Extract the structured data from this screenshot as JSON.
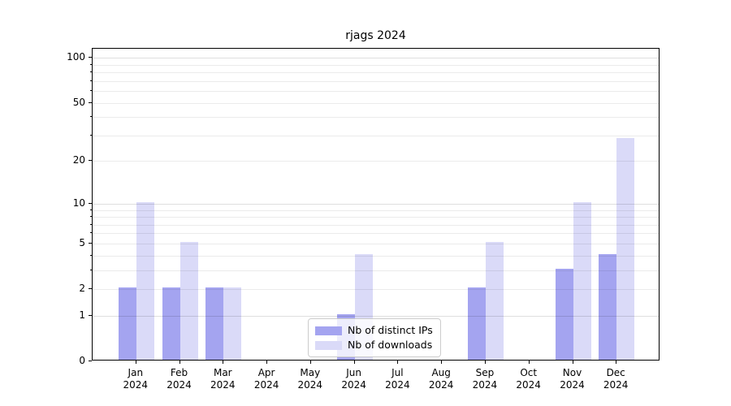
{
  "title": "rjags 2024",
  "chart_data": {
    "type": "bar",
    "title": "rjags 2024",
    "categories": [
      "Jan",
      "Feb",
      "Mar",
      "Apr",
      "May",
      "Jun",
      "Jul",
      "Aug",
      "Sep",
      "Oct",
      "Nov",
      "Dec"
    ],
    "year_label": "2024",
    "series": [
      {
        "name": "Nb of distinct IPs",
        "color": "#a4a4f0",
        "values": [
          2,
          2,
          2,
          0,
          0,
          1,
          0,
          0,
          2,
          0,
          3,
          4
        ]
      },
      {
        "name": "Nb of downloads",
        "color": "#dadaf8",
        "values": [
          10,
          5,
          2,
          0,
          0,
          4,
          0,
          0,
          5,
          0,
          10,
          28
        ]
      }
    ],
    "y_scale": "log1p",
    "ylim": [
      0,
      115
    ],
    "y_ticks": [
      0,
      1,
      2,
      5,
      10,
      20,
      50,
      100
    ],
    "y_gridlines": [
      1,
      2,
      3,
      4,
      5,
      6,
      7,
      8,
      9,
      10,
      20,
      30,
      40,
      50,
      60,
      70,
      80,
      90,
      100
    ],
    "y_major_gridlines": [
      1,
      10,
      100
    ],
    "y_minor_tick_marks": [
      3,
      4,
      6,
      7,
      8,
      9,
      30,
      40,
      60,
      70,
      80,
      90
    ],
    "grid": true,
    "legend_position": "bottom-center"
  }
}
